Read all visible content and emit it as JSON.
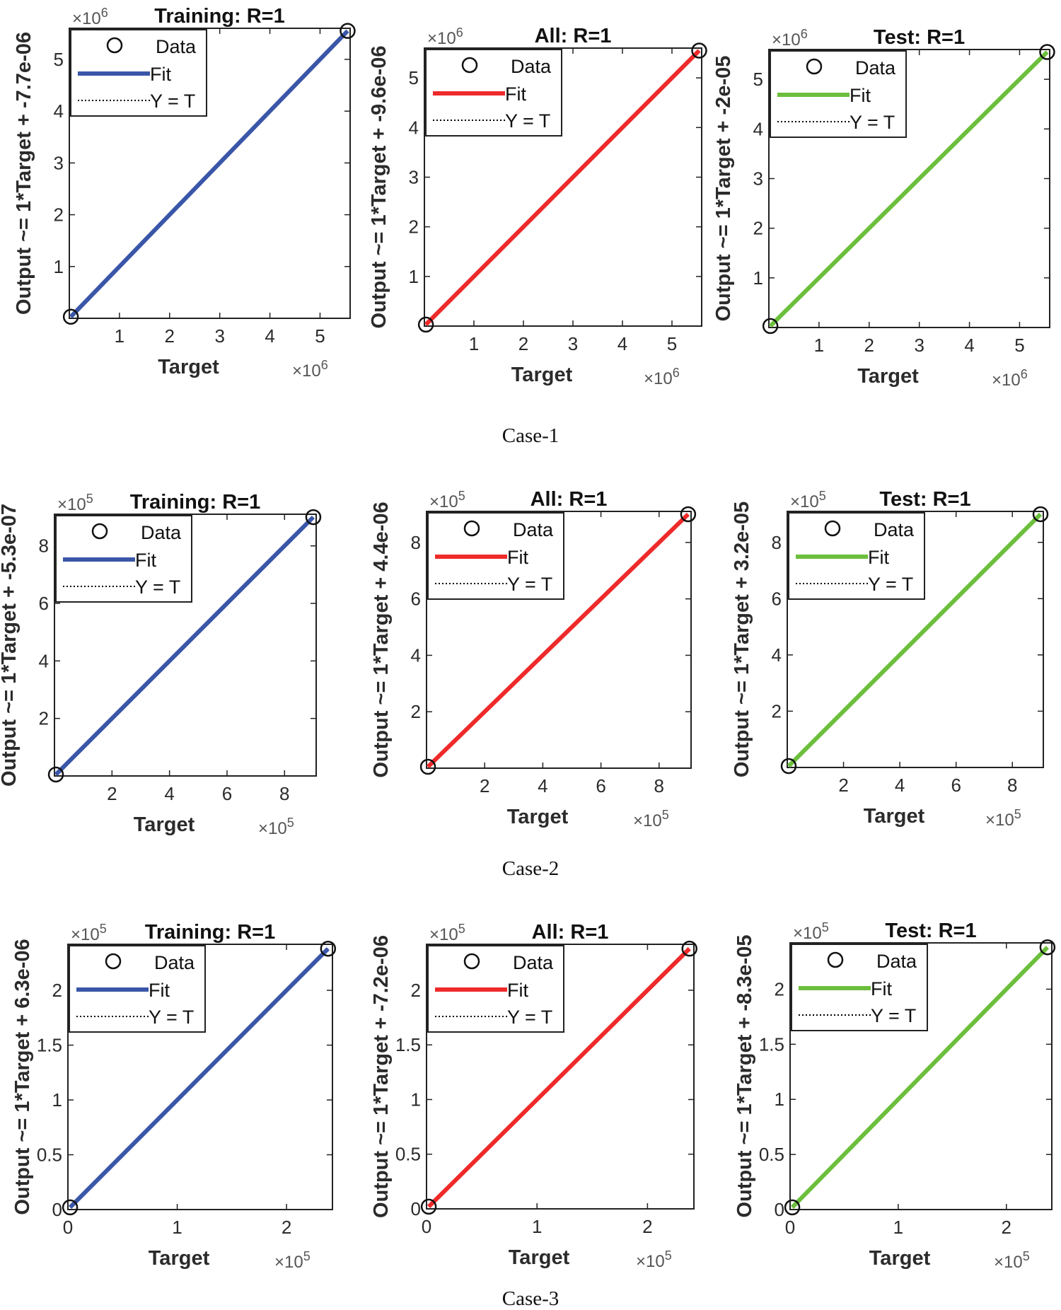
{
  "captions": [
    "Case-1",
    "Case-2",
    "Case-3"
  ],
  "legend_labels": [
    "Data",
    "Fit",
    "Y = T"
  ],
  "chart_data": [
    {
      "type": "line",
      "case": "Case-1",
      "title": "Training: R=1",
      "xlabel": "Target",
      "ylabel": "Output ~= 1*Target + -7.7e-06",
      "x_multiplier": "×10^6",
      "y_multiplier": "×10^6",
      "xlim": [
        0,
        5.6
      ],
      "ylim": [
        0,
        5.6
      ],
      "xticks": [
        1,
        2,
        3,
        4,
        5
      ],
      "yticks": [
        1,
        2,
        3,
        4,
        5
      ],
      "x_tick_labels": [
        "1",
        "2",
        "3",
        "4",
        "5"
      ],
      "y_tick_labels": [
        "1",
        "2",
        "3",
        "4",
        "5"
      ],
      "series": [
        {
          "name": "Data",
          "style": "circle",
          "x": [
            0.03,
            5.55
          ],
          "y": [
            0.03,
            5.55
          ]
        },
        {
          "name": "Fit",
          "style": "solid",
          "color": "#3a56a8",
          "x": [
            0.03,
            5.55
          ],
          "y": [
            0.03,
            5.55
          ]
        },
        {
          "name": "Y = T",
          "style": "dotted",
          "x": [
            0.03,
            5.55
          ],
          "y": [
            0.03,
            5.55
          ]
        }
      ]
    },
    {
      "type": "line",
      "case": "Case-1",
      "title": "All: R=1",
      "xlabel": "Target",
      "ylabel": "Output ~= 1*Target + -9.6e-06",
      "x_multiplier": "×10^6",
      "y_multiplier": "×10^6",
      "xlim": [
        0,
        5.6
      ],
      "ylim": [
        0,
        5.6
      ],
      "xticks": [
        1,
        2,
        3,
        4,
        5
      ],
      "yticks": [
        1,
        2,
        3,
        4,
        5
      ],
      "x_tick_labels": [
        "1",
        "2",
        "3",
        "4",
        "5"
      ],
      "y_tick_labels": [
        "1",
        "2",
        "3",
        "4",
        "5"
      ],
      "series": [
        {
          "name": "Data",
          "style": "circle",
          "x": [
            0.03,
            5.55
          ],
          "y": [
            0.03,
            5.55
          ]
        },
        {
          "name": "Fit",
          "style": "solid",
          "color": "#ee2a2a",
          "x": [
            0.03,
            5.55
          ],
          "y": [
            0.03,
            5.55
          ]
        },
        {
          "name": "Y = T",
          "style": "dotted",
          "x": [
            0.03,
            5.55
          ],
          "y": [
            0.03,
            5.55
          ]
        }
      ]
    },
    {
      "type": "line",
      "case": "Case-1",
      "title": "Test: R=1",
      "xlabel": "Target",
      "ylabel": "Output ~= 1*Target + -2e-05",
      "x_multiplier": "×10^6",
      "y_multiplier": "×10^6",
      "xlim": [
        0,
        5.6
      ],
      "ylim": [
        0,
        5.6
      ],
      "xticks": [
        1,
        2,
        3,
        4,
        5
      ],
      "yticks": [
        1,
        2,
        3,
        4,
        5
      ],
      "x_tick_labels": [
        "1",
        "2",
        "3",
        "4",
        "5"
      ],
      "y_tick_labels": [
        "1",
        "2",
        "3",
        "4",
        "5"
      ],
      "series": [
        {
          "name": "Data",
          "style": "circle",
          "x": [
            0.03,
            5.55
          ],
          "y": [
            0.03,
            5.55
          ]
        },
        {
          "name": "Fit",
          "style": "solid",
          "color": "#6cbf3c",
          "x": [
            0.03,
            5.55
          ],
          "y": [
            0.03,
            5.55
          ]
        },
        {
          "name": "Y = T",
          "style": "dotted",
          "x": [
            0.03,
            5.55
          ],
          "y": [
            0.03,
            5.55
          ]
        }
      ]
    },
    {
      "type": "line",
      "case": "Case-2",
      "title": "Training: R=1",
      "xlabel": "Target",
      "ylabel": "Output ~= 1*Target + -5.3e-07",
      "x_multiplier": "×10^5",
      "y_multiplier": "×10^5",
      "xlim": [
        0,
        9.1
      ],
      "ylim": [
        0,
        9.1
      ],
      "xticks": [
        2,
        4,
        6,
        8
      ],
      "yticks": [
        2,
        4,
        6,
        8
      ],
      "x_tick_labels": [
        "2",
        "4",
        "6",
        "8"
      ],
      "y_tick_labels": [
        "2",
        "4",
        "6",
        "8"
      ],
      "series": [
        {
          "name": "Data",
          "style": "circle",
          "x": [
            0.05,
            9.0
          ],
          "y": [
            0.05,
            9.0
          ]
        },
        {
          "name": "Fit",
          "style": "solid",
          "color": "#3a56a8",
          "x": [
            0.05,
            9.0
          ],
          "y": [
            0.05,
            9.0
          ]
        },
        {
          "name": "Y = T",
          "style": "dotted",
          "x": [
            0.05,
            9.0
          ],
          "y": [
            0.05,
            9.0
          ]
        }
      ]
    },
    {
      "type": "line",
      "case": "Case-2",
      "title": "All: R=1",
      "xlabel": "Target",
      "ylabel": "Output ~= 1*Target + 4.4e-06",
      "x_multiplier": "×10^5",
      "y_multiplier": "×10^5",
      "xlim": [
        0,
        9.1
      ],
      "ylim": [
        0,
        9.1
      ],
      "xticks": [
        2,
        4,
        6,
        8
      ],
      "yticks": [
        2,
        4,
        6,
        8
      ],
      "x_tick_labels": [
        "2",
        "4",
        "6",
        "8"
      ],
      "y_tick_labels": [
        "2",
        "4",
        "6",
        "8"
      ],
      "series": [
        {
          "name": "Data",
          "style": "circle",
          "x": [
            0.05,
            9.0
          ],
          "y": [
            0.05,
            9.0
          ]
        },
        {
          "name": "Fit",
          "style": "solid",
          "color": "#ee2a2a",
          "x": [
            0.05,
            9.0
          ],
          "y": [
            0.05,
            9.0
          ]
        },
        {
          "name": "Y = T",
          "style": "dotted",
          "x": [
            0.05,
            9.0
          ],
          "y": [
            0.05,
            9.0
          ]
        }
      ]
    },
    {
      "type": "line",
      "case": "Case-2",
      "title": "Test: R=1",
      "xlabel": "Target",
      "ylabel": "Output ~= 1*Target + 3.2e-05",
      "x_multiplier": "×10^5",
      "y_multiplier": "×10^5",
      "xlim": [
        0,
        9.1
      ],
      "ylim": [
        0,
        9.1
      ],
      "xticks": [
        2,
        4,
        6,
        8
      ],
      "yticks": [
        2,
        4,
        6,
        8
      ],
      "x_tick_labels": [
        "2",
        "4",
        "6",
        "8"
      ],
      "y_tick_labels": [
        "2",
        "4",
        "6",
        "8"
      ],
      "series": [
        {
          "name": "Data",
          "style": "circle",
          "x": [
            0.05,
            9.0
          ],
          "y": [
            0.05,
            9.0
          ]
        },
        {
          "name": "Fit",
          "style": "solid",
          "color": "#6cbf3c",
          "x": [
            0.05,
            9.0
          ],
          "y": [
            0.05,
            9.0
          ]
        },
        {
          "name": "Y = T",
          "style": "dotted",
          "x": [
            0.05,
            9.0
          ],
          "y": [
            0.05,
            9.0
          ]
        }
      ]
    },
    {
      "type": "line",
      "case": "Case-3",
      "title": "Training: R=1",
      "xlabel": "Target",
      "ylabel": "Output ~= 1*Target + 6.3e-06",
      "x_multiplier": "×10^5",
      "y_multiplier": "×10^5",
      "xlim": [
        0,
        2.42
      ],
      "ylim": [
        0,
        2.42
      ],
      "xticks": [
        0,
        1,
        2
      ],
      "yticks": [
        0,
        0.5,
        1,
        1.5,
        2
      ],
      "x_tick_labels": [
        "0",
        "1",
        "2"
      ],
      "y_tick_labels": [
        "0",
        "0.5",
        "1",
        "1.5",
        "2"
      ],
      "series": [
        {
          "name": "Data",
          "style": "circle",
          "x": [
            0.02,
            2.38
          ],
          "y": [
            0.02,
            2.38
          ]
        },
        {
          "name": "Fit",
          "style": "solid",
          "color": "#3a56a8",
          "x": [
            0.02,
            2.38
          ],
          "y": [
            0.02,
            2.38
          ]
        },
        {
          "name": "Y = T",
          "style": "dotted",
          "x": [
            0.02,
            2.38
          ],
          "y": [
            0.02,
            2.38
          ]
        }
      ]
    },
    {
      "type": "line",
      "case": "Case-3",
      "title": "All: R=1",
      "xlabel": "Target",
      "ylabel": "Output ~= 1*Target + -7.2e-06",
      "x_multiplier": "×10^5",
      "y_multiplier": "×10^5",
      "xlim": [
        0,
        2.42
      ],
      "ylim": [
        0,
        2.42
      ],
      "xticks": [
        0,
        1,
        2
      ],
      "yticks": [
        0,
        0.5,
        1,
        1.5,
        2
      ],
      "x_tick_labels": [
        "0",
        "1",
        "2"
      ],
      "y_tick_labels": [
        "0",
        "0.5",
        "1",
        "1.5",
        "2"
      ],
      "series": [
        {
          "name": "Data",
          "style": "circle",
          "x": [
            0.02,
            2.38
          ],
          "y": [
            0.02,
            2.38
          ]
        },
        {
          "name": "Fit",
          "style": "solid",
          "color": "#ee2a2a",
          "x": [
            0.02,
            2.38
          ],
          "y": [
            0.02,
            2.38
          ]
        },
        {
          "name": "Y = T",
          "style": "dotted",
          "x": [
            0.02,
            2.38
          ],
          "y": [
            0.02,
            2.38
          ]
        }
      ]
    },
    {
      "type": "line",
      "case": "Case-3",
      "title": "Test: R=1",
      "xlabel": "Target",
      "ylabel": "Output ~= 1*Target + -8.3e-05",
      "x_multiplier": "×10^5",
      "y_multiplier": "×10^5",
      "xlim": [
        0,
        2.42
      ],
      "ylim": [
        0,
        2.42
      ],
      "xticks": [
        0,
        1,
        2
      ],
      "yticks": [
        0,
        0.5,
        1,
        1.5,
        2
      ],
      "x_tick_labels": [
        "0",
        "1",
        "2"
      ],
      "y_tick_labels": [
        "0",
        "0.5",
        "1",
        "1.5",
        "2"
      ],
      "series": [
        {
          "name": "Data",
          "style": "circle",
          "x": [
            0.02,
            2.38
          ],
          "y": [
            0.02,
            2.38
          ]
        },
        {
          "name": "Fit",
          "style": "solid",
          "color": "#6cbf3c",
          "x": [
            0.02,
            2.38
          ],
          "y": [
            0.02,
            2.38
          ]
        },
        {
          "name": "Y = T",
          "style": "dotted",
          "x": [
            0.02,
            2.38
          ],
          "y": [
            0.02,
            2.38
          ]
        }
      ]
    }
  ]
}
